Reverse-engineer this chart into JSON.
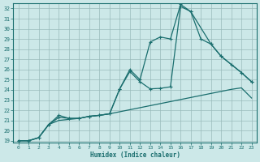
{
  "xlabel": "Humidex (Indice chaleur)",
  "bg_color": "#cce8e8",
  "grid_color": "#99bbbb",
  "line_color": "#1a6e6e",
  "xlim": [
    -0.5,
    23.5
  ],
  "ylim": [
    18.8,
    32.5
  ],
  "xticks": [
    0,
    1,
    2,
    3,
    4,
    5,
    6,
    7,
    8,
    9,
    10,
    11,
    12,
    13,
    14,
    15,
    16,
    17,
    18,
    19,
    20,
    21,
    22,
    23
  ],
  "yticks": [
    19,
    20,
    21,
    22,
    23,
    24,
    25,
    26,
    27,
    28,
    29,
    30,
    31,
    32
  ],
  "line1_x": [
    0,
    1,
    2,
    3,
    4,
    5,
    6,
    7,
    8,
    9,
    10,
    11,
    12,
    13,
    14,
    15,
    16,
    17,
    18,
    19,
    20,
    21,
    22,
    23
  ],
  "line1_y": [
    19.0,
    19.0,
    19.3,
    20.6,
    21.0,
    21.1,
    21.2,
    21.4,
    21.5,
    21.65,
    21.85,
    22.05,
    22.25,
    22.45,
    22.65,
    22.85,
    23.05,
    23.25,
    23.45,
    23.65,
    23.85,
    24.05,
    24.2,
    23.2
  ],
  "line2_x": [
    0,
    1,
    2,
    3,
    4,
    5,
    6,
    7,
    8,
    9,
    10,
    11,
    12,
    13,
    14,
    15,
    16,
    17,
    19,
    20,
    22,
    23
  ],
  "line2_y": [
    19.0,
    19.0,
    19.3,
    20.6,
    21.3,
    21.2,
    21.2,
    21.4,
    21.5,
    21.65,
    24.1,
    25.8,
    24.8,
    24.1,
    24.15,
    24.3,
    32.2,
    31.7,
    28.5,
    27.3,
    25.7,
    24.8
  ],
  "line3_x": [
    0,
    1,
    2,
    3,
    4,
    5,
    6,
    7,
    8,
    9,
    10,
    11,
    12,
    13,
    14,
    15,
    16,
    17,
    18,
    19,
    20,
    21,
    22,
    23
  ],
  "line3_y": [
    19.0,
    19.0,
    19.3,
    20.6,
    21.5,
    21.2,
    21.2,
    21.4,
    21.5,
    21.65,
    24.1,
    26.0,
    25.0,
    28.7,
    29.2,
    29.0,
    32.4,
    31.7,
    29.0,
    28.5,
    27.3,
    26.5,
    25.7,
    24.8
  ]
}
